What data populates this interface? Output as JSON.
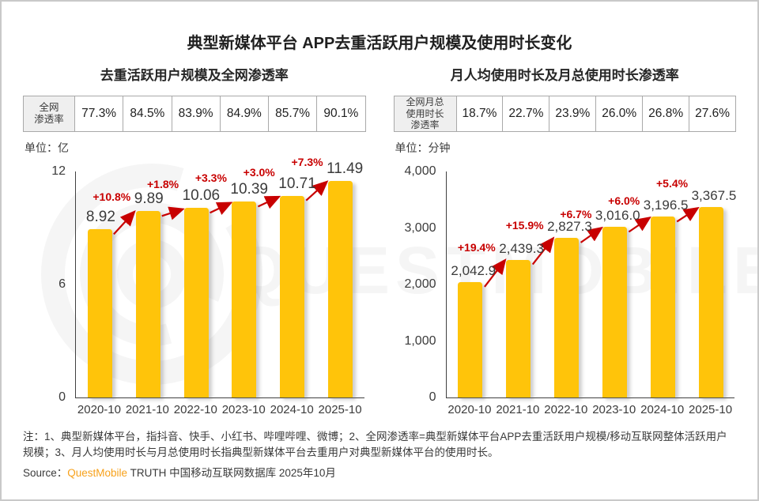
{
  "page": {
    "title": "典型新媒体平台 APP去重活跃用户规模及使用时长变化",
    "watermark_text": "QUESTMOBILE"
  },
  "colors": {
    "bar_yellow": "#ffc40a",
    "growth_red": "#c80000",
    "brand_orange": "#f7a11b",
    "header_cell_gray": "#efefef"
  },
  "chart_data": [
    {
      "type": "bar",
      "title": "去重活跃用户规模及全网渗透率",
      "unit": "单位：亿",
      "categories": [
        "2020-10",
        "2021-10",
        "2022-10",
        "2023-10",
        "2024-10",
        "2025-10"
      ],
      "values": [
        8.92,
        9.89,
        10.06,
        10.39,
        10.71,
        11.49
      ],
      "value_labels": [
        "8.92",
        "9.89",
        "10.06",
        "10.39",
        "10.71",
        "11.49"
      ],
      "growth_labels": [
        "+10.8%",
        "+1.8%",
        "+3.3%",
        "+3.0%",
        "+7.3%"
      ],
      "growth_label_raise": [
        0,
        12,
        12,
        12,
        6
      ],
      "ylim": [
        0,
        12
      ],
      "yticks": [
        0,
        6,
        12
      ],
      "ytick_labels": [
        "0",
        "6",
        "12"
      ],
      "grid": false,
      "legend": false,
      "band_table": {
        "header": "全网渗透率",
        "header_lines": [
          "全网",
          "渗透率"
        ],
        "values": [
          "77.3%",
          "84.5%",
          "83.9%",
          "84.9%",
          "85.7%",
          "90.1%"
        ]
      }
    },
    {
      "type": "bar",
      "title": "月人均使用时长及月总使用时长渗透率",
      "unit": "单位：分钟",
      "categories": [
        "2020-10",
        "2021-10",
        "2022-10",
        "2023-10",
        "2024-10",
        "2025-10"
      ],
      "values": [
        2042.9,
        2439.3,
        2827.3,
        3016.0,
        3196.5,
        3367.5
      ],
      "value_labels": [
        "2,042.9",
        "2,439.3",
        "2,827.3",
        "3,016.0",
        "3,196.5",
        "3,367.5"
      ],
      "growth_labels": [
        "+19.4%",
        "+15.9%",
        "+6.7%",
        "+6.0%",
        "+5.4%"
      ],
      "growth_label_raise": [
        0,
        0,
        0,
        4,
        14
      ],
      "ylim": [
        0,
        4000
      ],
      "yticks": [
        0,
        1000,
        2000,
        3000,
        4000
      ],
      "ytick_labels": [
        "0",
        "1,000",
        "2,000",
        "3,000",
        "4,000"
      ],
      "grid": false,
      "legend": false,
      "band_table": {
        "header": "全网月总使用时长渗透率",
        "header_lines": [
          "全网月总",
          "使用时长",
          "渗透率"
        ],
        "values": [
          "18.7%",
          "22.7%",
          "23.9%",
          "26.0%",
          "26.8%",
          "27.6%"
        ]
      }
    }
  ],
  "footer": {
    "note": "注：1、典型新媒体平台，指抖音、快手、小红书、哔哩哔哩、微博；2、全网渗透率=典型新媒体平台APP去重活跃用户规模/移动互联网整体活跃用户规模；3、月人均使用时长与月总使用时长指典型新媒体平台去重用户对典型新媒体平台的使用时长。",
    "source_label": "Source：",
    "source_brand": "QuestMobile",
    "source_suffix": " TRUTH 中国移动互联网数据库 2025年10月"
  }
}
